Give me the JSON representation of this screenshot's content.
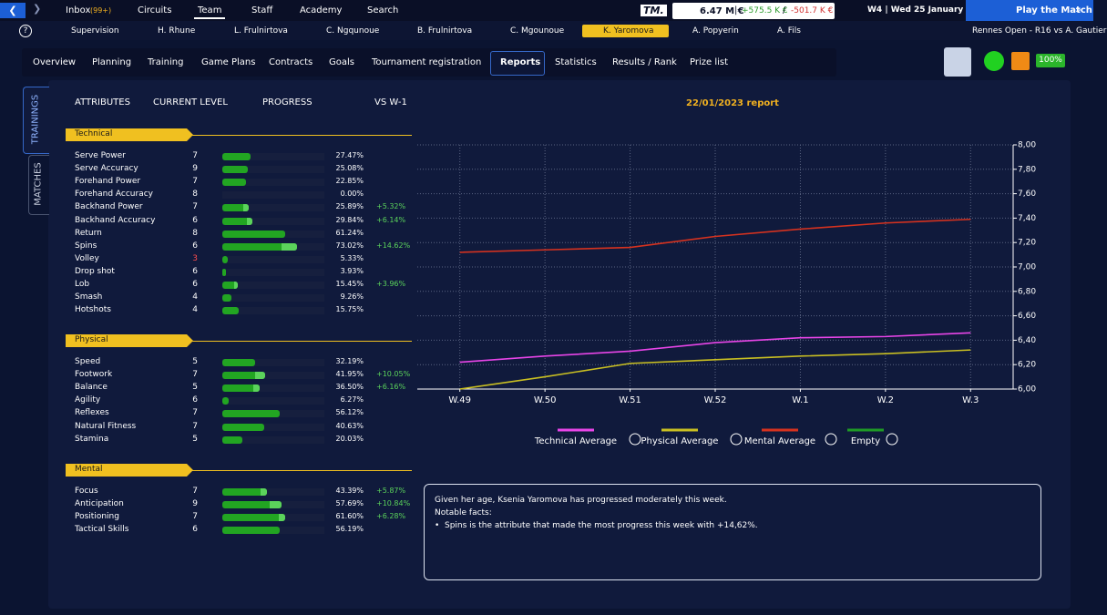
{
  "top_bar": {
    "logo": "TM.",
    "nav": [
      {
        "label": "Inbox",
        "badge": "(99+)"
      },
      {
        "label": "Circuits"
      },
      {
        "label": "Team"
      },
      {
        "label": "Staff"
      },
      {
        "label": "Academy"
      },
      {
        "label": "Search"
      }
    ],
    "active": 2,
    "balance": "6.47 M €",
    "income": "+575.5 K €",
    "expense": "-501.7 K €",
    "date": "W4 | Wed 25 January 2023",
    "play_button": "Play the Match"
  },
  "players": {
    "items": [
      "Supervision",
      "H. Rhune",
      "L. Frulnirtova",
      "C. Ngqunoue",
      "B. Frulnirtova",
      "C. Mgounoue",
      "K. Yaromova",
      "A. Popyerin",
      "A. Fils"
    ],
    "active": 6,
    "match": "Rennes Open - R16 vs A. Gautier"
  },
  "tabs": {
    "items": [
      "Overview",
      "Planning",
      "Training",
      "Game Plans",
      "Contracts",
      "Goals",
      "Tournament registration",
      "Reports",
      "Statistics",
      "Results / Rank",
      "Prize list"
    ],
    "active": 7,
    "morale": "100%"
  },
  "side_tabs": [
    "TRAININGS",
    "MATCHES"
  ],
  "attributes": {
    "headers": [
      "ATTRIBUTES",
      "CURRENT LEVEL",
      "PROGRESS",
      "VS W-1"
    ],
    "groups": [
      {
        "name": "Technical",
        "rows": [
          {
            "name": "Serve Power",
            "level": 7,
            "progress": 27.47,
            "progress_label": "27.47%"
          },
          {
            "name": "Serve Accuracy",
            "level": 9,
            "progress": 25.08,
            "progress_label": "25.08%"
          },
          {
            "name": "Forehand Power",
            "level": 7,
            "progress": 22.85,
            "progress_label": "22.85%"
          },
          {
            "name": "Forehand Accuracy",
            "level": 8,
            "progress": 0,
            "progress_label": "0.00%"
          },
          {
            "name": "Backhand Power",
            "level": 7,
            "progress": 25.89,
            "progress_label": "25.89%",
            "change": 5.32,
            "change_label": "+5.32%"
          },
          {
            "name": "Backhand Accuracy",
            "level": 6,
            "progress": 29.84,
            "progress_label": "29.84%",
            "change": 6.14,
            "change_label": "+6.14%"
          },
          {
            "name": "Return",
            "level": 8,
            "progress": 61.24,
            "progress_label": "61.24%"
          },
          {
            "name": "Spins",
            "level": 6,
            "progress": 73.02,
            "progress_label": "73.02%",
            "change": 14.62,
            "change_label": "+14.62%"
          },
          {
            "name": "Volley",
            "level": 3,
            "level_color": "#ff4d4d",
            "progress": 5.33,
            "progress_label": "5.33%"
          },
          {
            "name": "Drop shot",
            "level": 6,
            "progress": 3.93,
            "progress_label": "3.93%"
          },
          {
            "name": "Lob",
            "level": 6,
            "progress": 15.45,
            "progress_label": "15.45%",
            "change": 3.96,
            "change_label": "+3.96%"
          },
          {
            "name": "Smash",
            "level": 4,
            "progress": 9.26,
            "progress_label": "9.26%"
          },
          {
            "name": "Hotshots",
            "level": 4,
            "progress": 15.75,
            "progress_label": "15.75%"
          }
        ]
      },
      {
        "name": "Physical",
        "rows": [
          {
            "name": "Speed",
            "level": 5,
            "progress": 32.19,
            "progress_label": "32.19%"
          },
          {
            "name": "Footwork",
            "level": 7,
            "progress": 41.95,
            "progress_label": "41.95%",
            "change": 10.05,
            "change_label": "+10.05%"
          },
          {
            "name": "Balance",
            "level": 5,
            "progress": 36.5,
            "progress_label": "36.50%",
            "change": 6.16,
            "change_label": "+6.16%"
          },
          {
            "name": "Agility",
            "level": 6,
            "progress": 6.27,
            "progress_label": "6.27%"
          },
          {
            "name": "Reflexes",
            "level": 7,
            "progress": 56.12,
            "progress_label": "56.12%"
          },
          {
            "name": "Natural Fitness",
            "level": 7,
            "progress": 40.63,
            "progress_label": "40.63%"
          },
          {
            "name": "Stamina",
            "level": 5,
            "progress": 20.03,
            "progress_label": "20.03%"
          }
        ]
      },
      {
        "name": "Mental",
        "rows": [
          {
            "name": "Focus",
            "level": 7,
            "progress": 43.39,
            "progress_label": "43.39%",
            "change": 5.87,
            "change_label": "+5.87%"
          },
          {
            "name": "Anticipation",
            "level": 9,
            "progress": 57.69,
            "progress_label": "57.69%",
            "change": 10.84,
            "change_label": "+10.84%"
          },
          {
            "name": "Positioning",
            "level": 7,
            "progress": 61.6,
            "progress_label": "61.60%",
            "change": 6.28,
            "change_label": "+6.28%"
          },
          {
            "name": "Tactical Skills",
            "level": 6,
            "progress": 56.19,
            "progress_label": "56.19%"
          }
        ]
      }
    ]
  },
  "chart_data": {
    "type": "line",
    "title": "22/01/2023 report",
    "categories": [
      "W.49",
      "W.50",
      "W.51",
      "W.52",
      "W.1",
      "W.2",
      "W.3"
    ],
    "series": [
      {
        "name": "Technical Average",
        "color": "#e845e8",
        "values": [
          6.22,
          6.27,
          6.31,
          6.38,
          6.42,
          6.43,
          6.46
        ]
      },
      {
        "name": "Physical Average",
        "color": "#c9bf22",
        "values": [
          6.0,
          6.1,
          6.21,
          6.24,
          6.27,
          6.29,
          6.32
        ]
      },
      {
        "name": "Mental Average",
        "color": "#d6321f",
        "values": [
          7.12,
          7.14,
          7.16,
          7.25,
          7.31,
          7.36,
          7.39
        ]
      },
      {
        "name": "Empty",
        "color": "#1f9a26",
        "values": [
          null,
          null,
          null,
          null,
          null,
          null,
          null
        ]
      }
    ],
    "ylim": [
      6,
      8
    ],
    "yticks": [
      {
        "value": 6,
        "label": "6,00"
      },
      {
        "value": 6.2,
        "label": "6,20"
      },
      {
        "value": 6.4,
        "label": "6,40"
      },
      {
        "value": 6.6,
        "label": "6,60"
      },
      {
        "value": 6.8,
        "label": "6,80"
      },
      {
        "value": 7,
        "label": "7,00"
      },
      {
        "value": 7.2,
        "label": "7,20"
      },
      {
        "value": 7.4,
        "label": "7,40"
      },
      {
        "value": 7.6,
        "label": "7,60"
      },
      {
        "value": 7.8,
        "label": "7,80"
      },
      {
        "value": 8,
        "label": "8,00"
      }
    ],
    "grid": true,
    "axis_side": "right"
  },
  "report": {
    "lines": [
      "Given her age, Ksenia Yaromova has progressed moderately this week.",
      "Notable facts:"
    ],
    "bullets": [
      "Spins is the attribute that made the most progress this week with +14,62%."
    ]
  }
}
